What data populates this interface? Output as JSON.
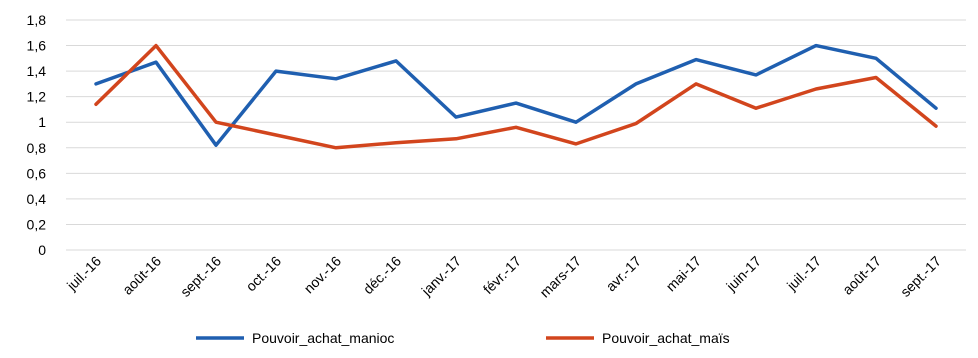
{
  "chart_data": {
    "type": "line",
    "categories": [
      "juil.-16",
      "août-16",
      "sept.-16",
      "oct.-16",
      "nov.-16",
      "déc.-16",
      "janv.-17",
      "févr.-17",
      "mars-17",
      "avr.-17",
      "mai-17",
      "juin-17",
      "juil.-17",
      "août-17",
      "sept.-17"
    ],
    "y_tick_labels": [
      "0",
      "0,2",
      "0,4",
      "0,6",
      "0,8",
      "1",
      "1,2",
      "1,4",
      "1,6",
      "1,8"
    ],
    "ylim": [
      0,
      1.8
    ],
    "grid": true,
    "legend_position": "bottom",
    "series": [
      {
        "name": "Pouvoir_achat_manioc",
        "color": "#1f5fb0",
        "values": [
          1.3,
          1.47,
          0.82,
          1.4,
          1.34,
          1.48,
          1.04,
          1.15,
          1.0,
          1.3,
          1.49,
          1.37,
          1.6,
          1.5,
          1.11
        ]
      },
      {
        "name": "Pouvoir_achat_maïs",
        "color": "#d2451d",
        "values": [
          1.14,
          1.6,
          1.0,
          0.9,
          0.8,
          0.84,
          0.87,
          0.96,
          0.83,
          0.99,
          1.3,
          1.11,
          1.26,
          1.35,
          0.97
        ]
      }
    ]
  }
}
